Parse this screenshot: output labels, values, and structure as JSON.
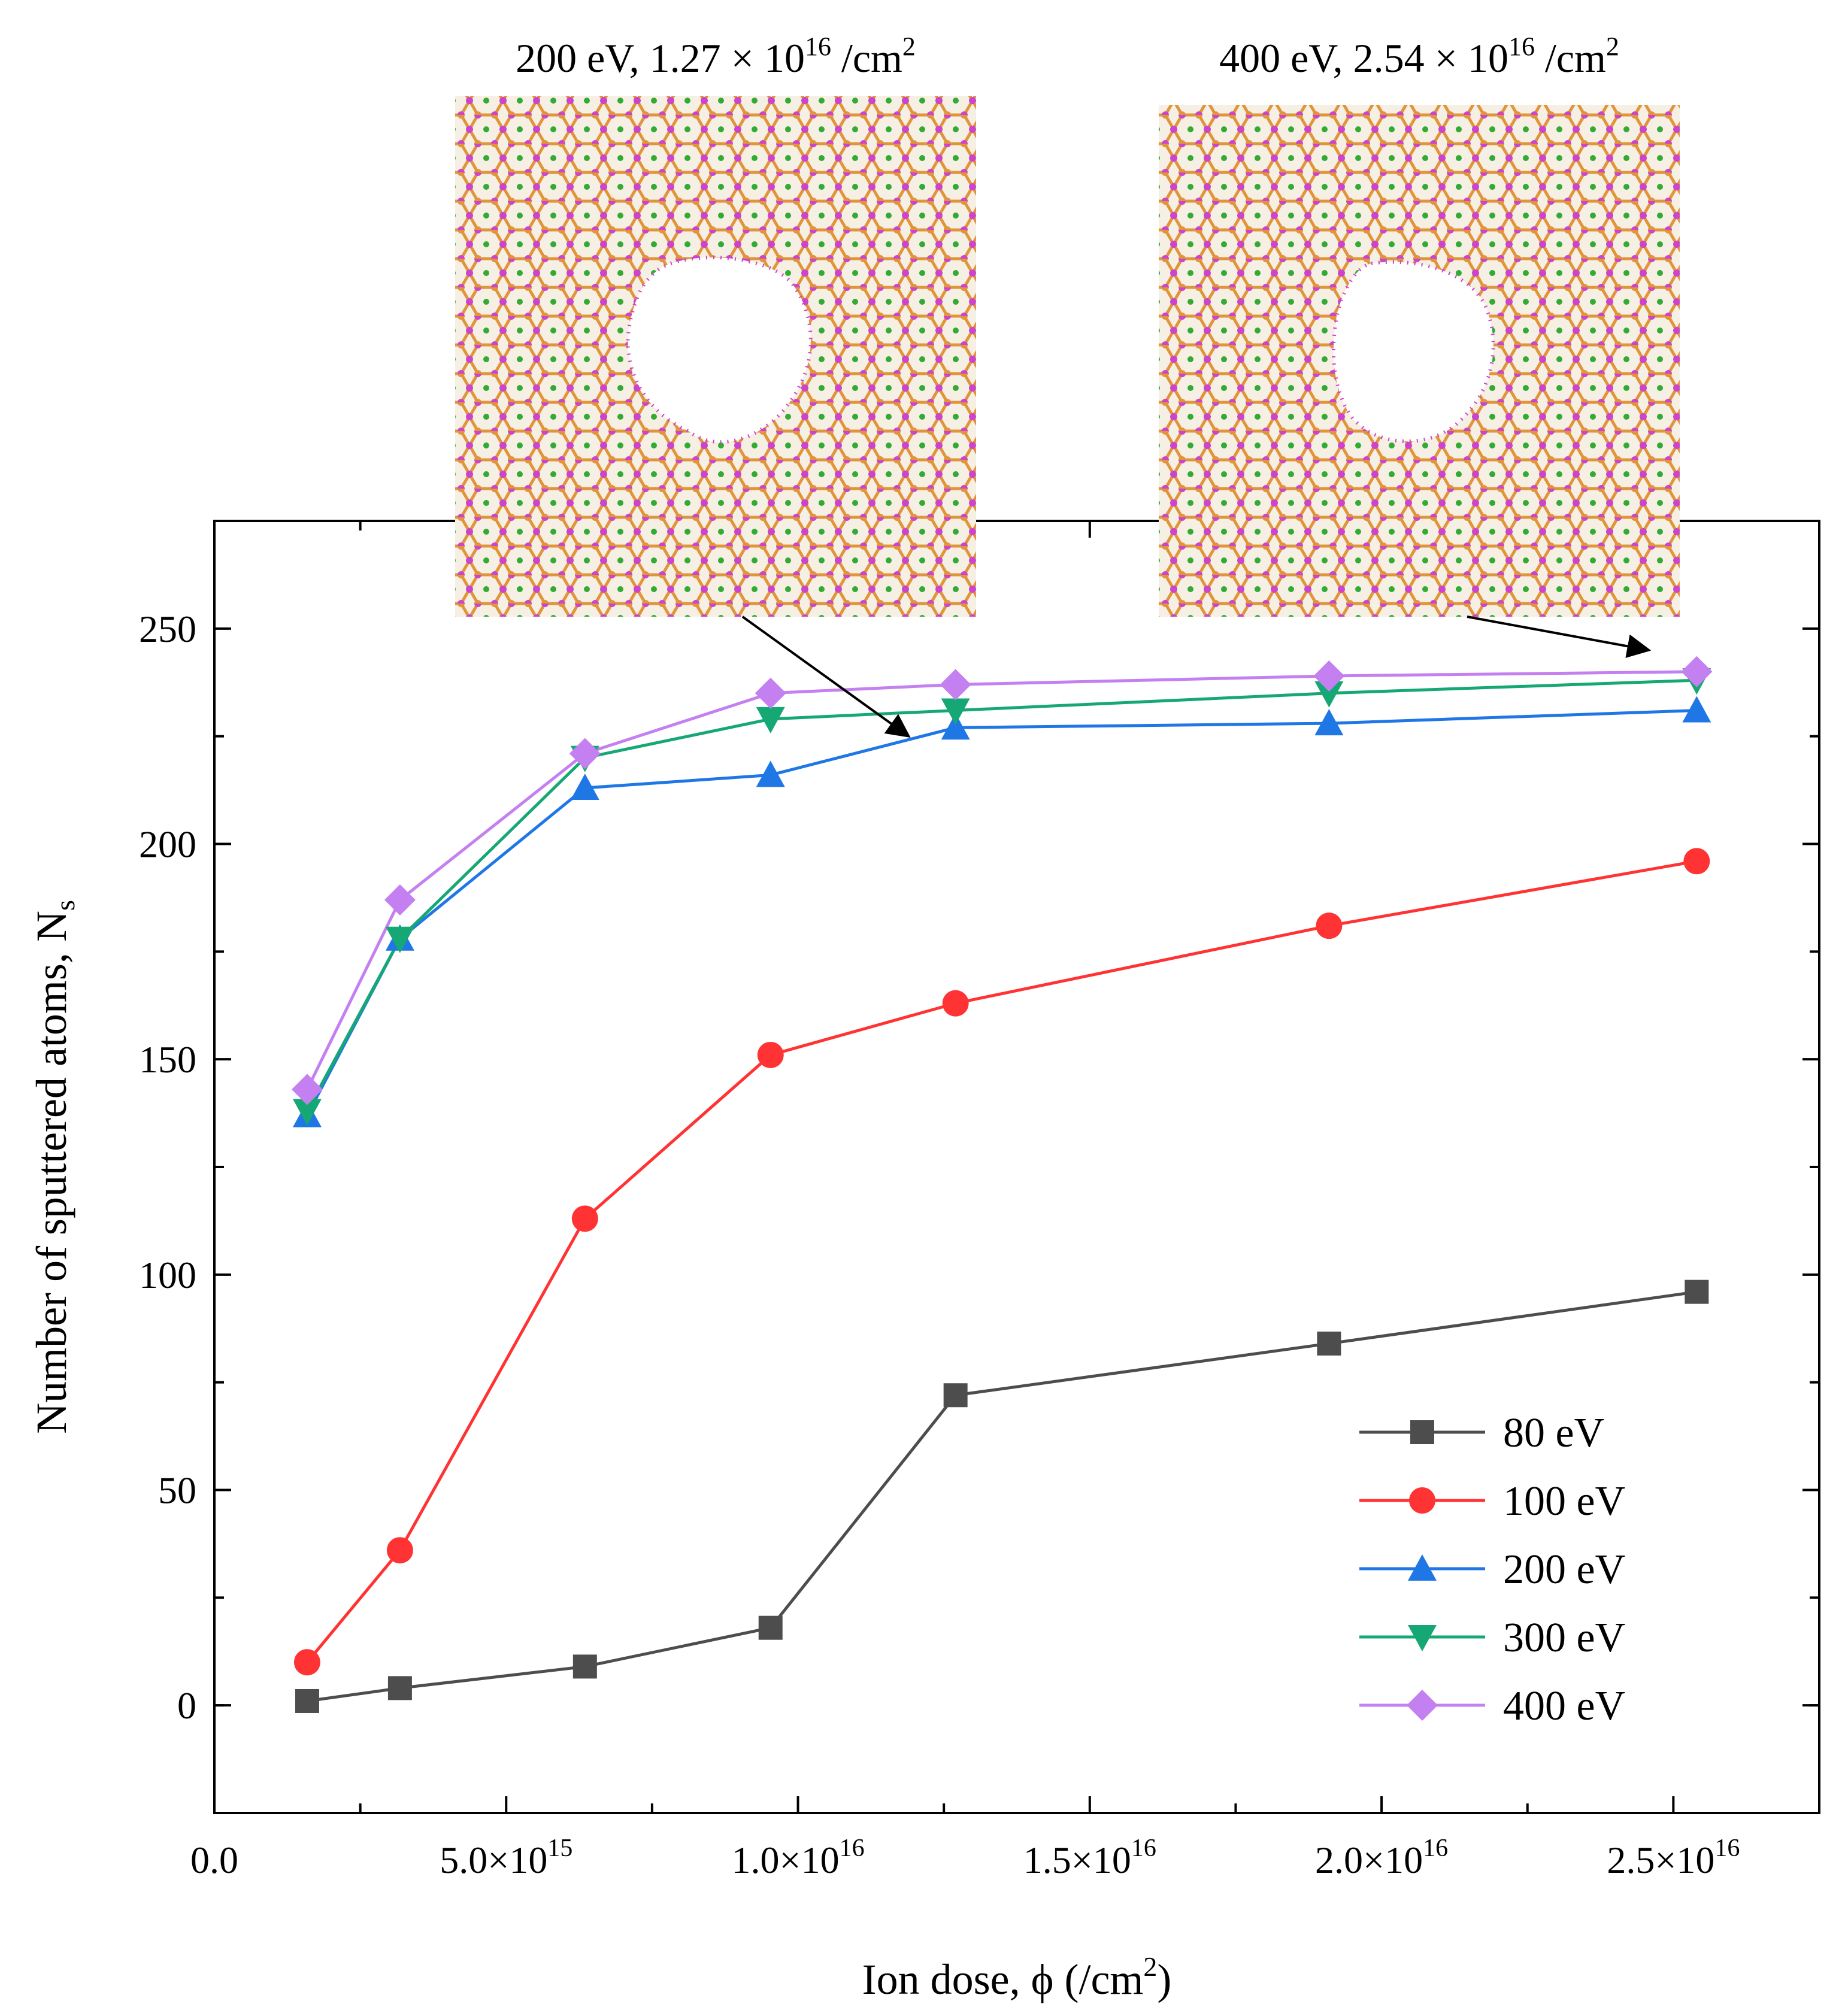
{
  "chart_data": {
    "type": "line",
    "xlabel_prefix": "Ion dose, ϕ (/cm",
    "xlabel_sup": "2",
    "xlabel_suffix": ")",
    "ylabel_main": "Number of sputtered atoms, N",
    "ylabel_sub": "s",
    "xlim": [
      0,
      2.75e+16
    ],
    "ylim": [
      -25,
      275
    ],
    "x_ticks": [
      {
        "value": 0,
        "label": "0.0",
        "sup": ""
      },
      {
        "value": 5000000000000000.0,
        "label": "5.0×10",
        "sup": "15"
      },
      {
        "value": 1e+16,
        "label": "1.0×10",
        "sup": "16"
      },
      {
        "value": 1.5e+16,
        "label": "1.5×10",
        "sup": "16"
      },
      {
        "value": 2e+16,
        "label": "2.0×10",
        "sup": "16"
      },
      {
        "value": 2.5e+16,
        "label": "2.5×10",
        "sup": "16"
      }
    ],
    "y_ticks": [
      0,
      50,
      100,
      150,
      200,
      250
    ],
    "x": [
      1590000000000000.0,
      3180000000000000.0,
      6350000000000000.0,
      9530000000000000.0,
      1.27e+16,
      1.91e+16,
      2.54e+16
    ],
    "series": [
      {
        "name": "80 eV",
        "color": "#4d4d4d",
        "marker": "square",
        "values": [
          1,
          4,
          9,
          18,
          72,
          84,
          96
        ]
      },
      {
        "name": "100 eV",
        "color": "#ff3333",
        "marker": "circle",
        "values": [
          10,
          36,
          113,
          151,
          163,
          181,
          196
        ]
      },
      {
        "name": "200 eV",
        "color": "#1f77e6",
        "marker": "triangle-up",
        "values": [
          137,
          178,
          213,
          216,
          227,
          228,
          231
        ]
      },
      {
        "name": "300 eV",
        "color": "#16a874",
        "marker": "triangle-down",
        "values": [
          138,
          178,
          220,
          229,
          231,
          235,
          238
        ]
      },
      {
        "name": "400 eV",
        "color": "#c480f0",
        "marker": "diamond",
        "values": [
          143,
          187,
          221,
          235,
          237,
          239,
          240
        ]
      }
    ],
    "legend_position": "bottom-right",
    "insets": [
      {
        "title_prefix": "200 eV, 1.27 × 10",
        "title_sup": "16",
        "title_suffix": " /cm",
        "title_sup2": "2",
        "image": "MD snapshot of irradiated monolayer with a pore (200 eV)",
        "arrow_to": {
          "x": 1.2e+16,
          "y": 225
        }
      },
      {
        "title_prefix": "400 eV, 2.54 × 10",
        "title_sup": "16",
        "title_suffix": " /cm",
        "title_sup2": "2",
        "image": "MD snapshot of irradiated monolayer with a pore (400 eV)",
        "arrow_to": {
          "x": 2.54e+16,
          "y": 245
        }
      }
    ]
  }
}
